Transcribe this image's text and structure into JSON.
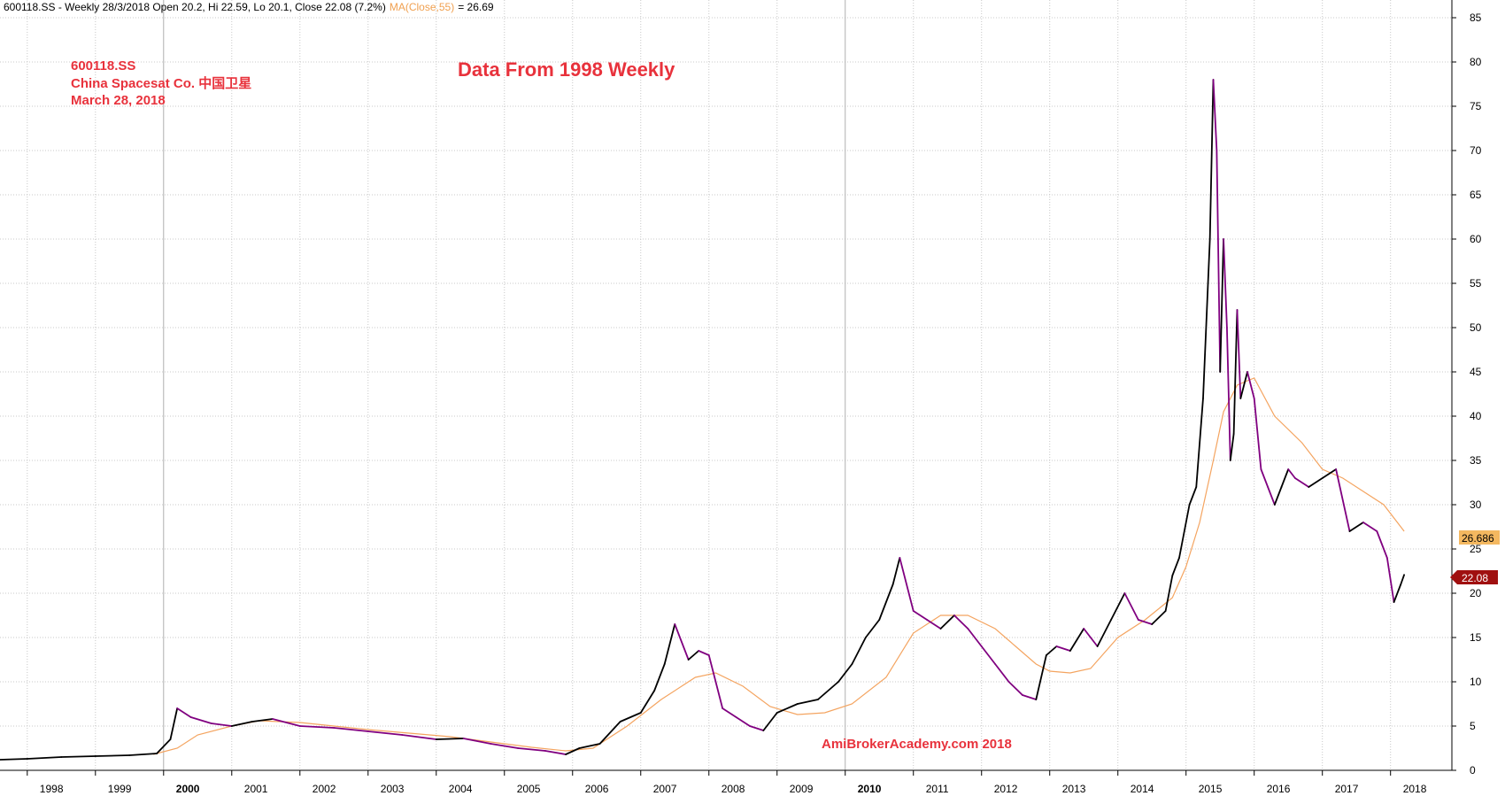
{
  "header": {
    "symbol_line": "600118.SS - Weekly 28/3/2018 Open 20.2, Hi 22.59, Lo 20.1, Close 22.08 (7.2%)",
    "ma_label": "MA(Close,55)",
    "ma_value": "= 26.69"
  },
  "annotations": {
    "symbol": "600118.SS",
    "company": "China Spacesat Co. 中国卫星",
    "date": "March 28, 2018",
    "title": "Data From 1998 Weekly",
    "watermark": "AmiBrokerAcademy.com  2018"
  },
  "badges": {
    "ma": "26.686",
    "close": "22.08"
  },
  "colors": {
    "price": "#000000",
    "price_down": "#800080",
    "ma": "#f4a460",
    "grid": "#c8c8c8",
    "annotation": "#e8323c",
    "ma_badge": "#f4b860",
    "close_badge": "#a01010"
  },
  "chart_data": {
    "type": "line",
    "title": "Data From 1998 Weekly",
    "xlabel": "",
    "ylabel": "",
    "ylim": [
      0,
      85
    ],
    "yticks": [
      0,
      5,
      10,
      15,
      20,
      25,
      30,
      35,
      40,
      45,
      50,
      55,
      60,
      65,
      70,
      75,
      80,
      85
    ],
    "xlim": [
      1997.6,
      2018.9
    ],
    "xticks": [
      "1998",
      "1999",
      "2000",
      "2001",
      "2002",
      "2003",
      "2004",
      "2005",
      "2006",
      "2007",
      "2008",
      "2009",
      "2010",
      "2011",
      "2012",
      "2013",
      "2014",
      "2015",
      "2016",
      "2017",
      "2018"
    ],
    "grid": true,
    "series": [
      {
        "role": "price",
        "x": [
          1997.6,
          1998.0,
          1998.5,
          1999.0,
          1999.5,
          1999.9,
          2000.1,
          2000.2,
          2000.4,
          2000.7,
          2001.0,
          2001.3,
          2001.6,
          2002.0,
          2002.5,
          2003.0,
          2003.5,
          2004.0,
          2004.4,
          2004.8,
          2005.2,
          2005.6,
          2005.9,
          2006.1,
          2006.4,
          2006.7,
          2007.0,
          2007.2,
          2007.35,
          2007.5,
          2007.7,
          2007.85,
          2008.0,
          2008.2,
          2008.4,
          2008.6,
          2008.8,
          2009.0,
          2009.3,
          2009.6,
          2009.9,
          2010.1,
          2010.3,
          2010.5,
          2010.7,
          2010.8,
          2011.0,
          2011.2,
          2011.4,
          2011.6,
          2011.8,
          2012.0,
          2012.2,
          2012.4,
          2012.6,
          2012.8,
          2012.95,
          2013.1,
          2013.3,
          2013.5,
          2013.7,
          2013.9,
          2014.1,
          2014.3,
          2014.5,
          2014.7,
          2014.8,
          2014.9,
          2015.05,
          2015.15,
          2015.25,
          2015.35,
          2015.4,
          2015.45,
          2015.5,
          2015.55,
          2015.6,
          2015.65,
          2015.7,
          2015.75,
          2015.8,
          2015.9,
          2016.0,
          2016.1,
          2016.2,
          2016.3,
          2016.4,
          2016.5,
          2016.6,
          2016.8,
          2017.0,
          2017.2,
          2017.4,
          2017.6,
          2017.8,
          2017.95,
          2018.05,
          2018.15,
          2018.2
        ],
        "y": [
          1.2,
          1.3,
          1.5,
          1.6,
          1.7,
          1.9,
          3.5,
          7.0,
          6.0,
          5.3,
          5.0,
          5.5,
          5.8,
          5.0,
          4.8,
          4.4,
          4.0,
          3.5,
          3.6,
          3.0,
          2.5,
          2.2,
          1.8,
          2.5,
          3.0,
          5.5,
          6.5,
          9.0,
          12.0,
          16.5,
          12.5,
          13.5,
          13.0,
          7.0,
          6.0,
          5.0,
          4.5,
          6.5,
          7.5,
          8.0,
          10.0,
          12.0,
          15.0,
          17.0,
          21.0,
          24.0,
          18.0,
          17.0,
          16.0,
          17.5,
          16.0,
          14.0,
          12.0,
          10.0,
          8.5,
          8.0,
          13.0,
          14.0,
          13.5,
          16.0,
          14.0,
          17.0,
          20.0,
          17.0,
          16.5,
          18.0,
          22.0,
          24.0,
          30.0,
          32.0,
          42.0,
          60.0,
          78.0,
          70.0,
          45.0,
          60.0,
          50.0,
          35.0,
          38.0,
          52.0,
          42.0,
          45.0,
          42.0,
          34.0,
          32.0,
          30.0,
          32.0,
          34.0,
          33.0,
          32.0,
          33.0,
          34.0,
          27.0,
          28.0,
          27.0,
          24.0,
          19.0,
          21.0,
          22.08
        ]
      },
      {
        "role": "ma",
        "name": "MA(Close,55)",
        "x": [
          1999.85,
          2000.2,
          2000.5,
          2001.0,
          2001.4,
          2002.0,
          2002.5,
          2003.0,
          2003.6,
          2004.2,
          2004.8,
          2005.4,
          2005.9,
          2006.3,
          2006.8,
          2007.3,
          2007.8,
          2008.1,
          2008.5,
          2008.9,
          2009.3,
          2009.7,
          2010.1,
          2010.6,
          2011.0,
          2011.4,
          2011.8,
          2012.2,
          2012.5,
          2012.8,
          2013.0,
          2013.3,
          2013.6,
          2014.0,
          2014.4,
          2014.8,
          2015.0,
          2015.2,
          2015.4,
          2015.55,
          2015.75,
          2015.9,
          2016.0,
          2016.3,
          2016.7,
          2017.0,
          2017.3,
          2017.6,
          2017.9,
          2018.2
        ],
        "y": [
          1.8,
          2.5,
          4.0,
          5.0,
          5.6,
          5.4,
          5.0,
          4.6,
          4.2,
          3.8,
          3.2,
          2.6,
          2.2,
          2.5,
          5.0,
          8.0,
          10.5,
          11.0,
          9.5,
          7.2,
          6.3,
          6.5,
          7.5,
          10.5,
          15.5,
          17.5,
          17.5,
          16.0,
          14.0,
          12.0,
          11.2,
          11.0,
          11.5,
          15.0,
          17.0,
          19.5,
          23.0,
          28.0,
          35.0,
          40.5,
          43.5,
          44.0,
          44.3,
          40.0,
          37.0,
          34.0,
          33.0,
          31.5,
          30.0,
          27.0
        ]
      }
    ]
  }
}
